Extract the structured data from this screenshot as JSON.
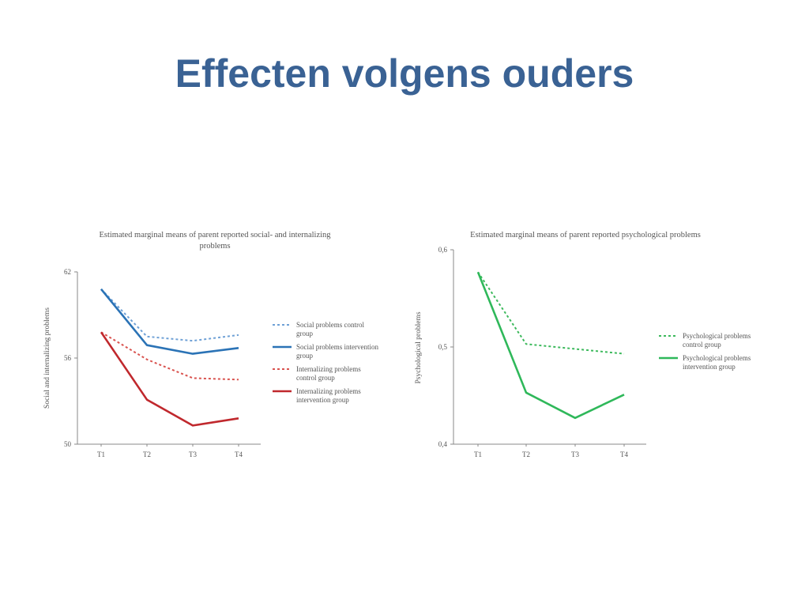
{
  "slide": {
    "title": "Effecten volgens ouders"
  },
  "chart_data": [
    {
      "type": "line",
      "title": "Estimated marginal means of parent reported social- and internalizing problems",
      "title_lines": [
        "Estimated marginal means of parent reported social- and internalizing",
        "problems"
      ],
      "ylabel": "Social and internalizing problems",
      "xlabel": "",
      "categories": [
        "T1",
        "T2",
        "T3",
        "T4"
      ],
      "ylim": [
        50,
        62
      ],
      "yticks": [
        "50",
        "56",
        "62"
      ],
      "grid": false,
      "legend_position": "right",
      "series": [
        {
          "name": "Social problems control group",
          "legend_lines": [
            "Social problems control",
            "group"
          ],
          "values": [
            60.8,
            57.5,
            57.2,
            57.6
          ],
          "color": "#6fa1d6",
          "style": "dotted"
        },
        {
          "name": "Social problems intervention group",
          "legend_lines": [
            "Social problems intervention",
            "group"
          ],
          "values": [
            60.8,
            56.9,
            56.3,
            56.7
          ],
          "color": "#2b73b6",
          "style": "solid"
        },
        {
          "name": "Internalizing problems control group",
          "legend_lines": [
            "Internalizing problems",
            "control group"
          ],
          "values": [
            57.8,
            55.9,
            54.6,
            54.5
          ],
          "color": "#d9534f",
          "style": "dotted"
        },
        {
          "name": "Internalizing problems intervention group",
          "legend_lines": [
            "Internalizing problems",
            "intervention group"
          ],
          "values": [
            57.8,
            53.1,
            51.3,
            51.8
          ],
          "color": "#c0282d",
          "style": "solid"
        }
      ]
    },
    {
      "type": "line",
      "title": "Estimated marginal means of parent reported psychological problems",
      "title_lines": [
        "Estimated marginal means of parent reported psychological problems"
      ],
      "ylabel": "Psychological problems",
      "xlabel": "",
      "categories": [
        "T1",
        "T2",
        "T3",
        "T4"
      ],
      "ylim": [
        0.4,
        0.6
      ],
      "yticks": [
        "0,4",
        "0,5",
        "0,6"
      ],
      "grid": false,
      "legend_position": "right",
      "series": [
        {
          "name": "Psychological problems control group",
          "legend_lines": [
            "Psychological problems",
            "control group"
          ],
          "values": [
            0.577,
            0.503,
            0.498,
            0.493
          ],
          "color": "#3cb95c",
          "style": "dotted"
        },
        {
          "name": "Psychological problems intervention group",
          "legend_lines": [
            "Psychological problems",
            "intervention group"
          ],
          "values": [
            0.577,
            0.453,
            0.427,
            0.451
          ],
          "color": "#2fb85a",
          "style": "solid"
        }
      ]
    }
  ]
}
